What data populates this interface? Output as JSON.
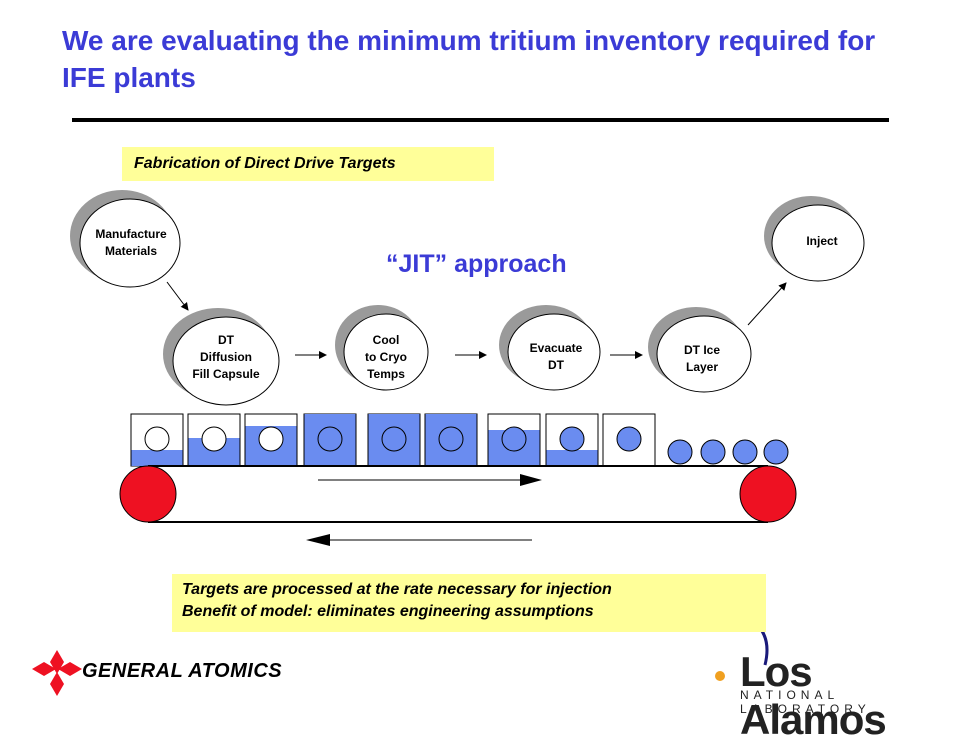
{
  "title": "We are evaluating the minimum tritium inventory required for IFE plants",
  "fabrication_label": "Fabrication of Direct Drive Targets",
  "jit_label": "“JIT” approach",
  "steps": [
    {
      "label": "Manufacture\nMaterials"
    },
    {
      "label": "DT\nDiffusion\nFill Capsule"
    },
    {
      "label": "Cool\nto Cryo\nTemps"
    },
    {
      "label": "Evacuate\nDT"
    },
    {
      "label": "DT Ice\nLayer"
    },
    {
      "label": "Inject"
    }
  ],
  "notes": [
    "Targets are processed at the rate necessary for injection",
    "Benefit of model: eliminates engineering assumptions"
  ],
  "logos": {
    "general_atomics": "GENERAL ATOMICS",
    "los_alamos": "Los Alamos",
    "los_alamos_sub": "NATIONAL LABORATORY"
  },
  "colors": {
    "title": "#3b3bd6",
    "fill": "#6a8cf0",
    "roller": "#ee1122",
    "highlight": "#ffff99"
  }
}
